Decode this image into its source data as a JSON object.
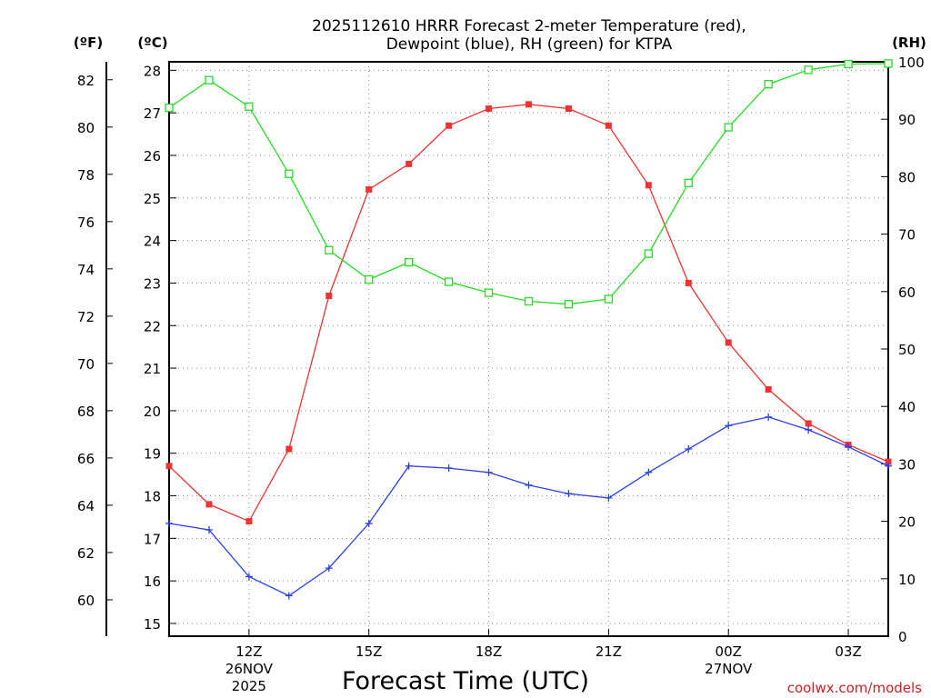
{
  "chart_data": {
    "type": "line",
    "title_line1": "2025112610 HRRR Forecast 2-meter Temperature (red),",
    "title_line2": "Dewpoint (blue), RH (green) for KTPA",
    "xlabel": "Forecast Time (UTC)",
    "credit": "coolwx.com/models",
    "unit_f": "(ºF)",
    "unit_c": "(ºC)",
    "unit_rh": "(RH)",
    "x_hours": [
      10,
      11,
      12,
      13,
      14,
      15,
      16,
      17,
      18,
      19,
      20,
      21,
      22,
      23,
      24,
      25,
      26,
      27,
      28
    ],
    "xlim": [
      10,
      28
    ],
    "ylim_c": [
      14.7,
      28.2
    ],
    "ylim_rh": [
      0,
      100
    ],
    "x_ticks": [
      {
        "hour": 12,
        "label": "12Z",
        "sub1": "26NOV",
        "sub2": "2025"
      },
      {
        "hour": 15,
        "label": "15Z",
        "sub1": "",
        "sub2": ""
      },
      {
        "hour": 18,
        "label": "18Z",
        "sub1": "",
        "sub2": ""
      },
      {
        "hour": 21,
        "label": "21Z",
        "sub1": "",
        "sub2": ""
      },
      {
        "hour": 24,
        "label": "00Z",
        "sub1": "27NOV",
        "sub2": ""
      },
      {
        "hour": 27,
        "label": "03Z",
        "sub1": "",
        "sub2": ""
      }
    ],
    "y_ticks_c": [
      15,
      16,
      17,
      18,
      19,
      20,
      21,
      22,
      23,
      24,
      25,
      26,
      27,
      28
    ],
    "y_ticks_f": [
      60,
      62,
      64,
      66,
      68,
      70,
      72,
      74,
      76,
      78,
      80,
      82
    ],
    "y_ticks_rh": [
      0,
      10,
      20,
      30,
      40,
      50,
      60,
      70,
      80,
      90,
      100
    ],
    "series": [
      {
        "name": "2-meter Temperature",
        "color": "#ee3333",
        "axis": "c",
        "marker": "filled-square",
        "values": [
          18.7,
          17.8,
          17.4,
          19.1,
          22.7,
          25.2,
          25.8,
          26.7,
          27.1,
          27.2,
          27.1,
          26.7,
          25.3,
          23.0,
          21.6,
          20.5,
          19.7,
          19.2,
          18.8
        ]
      },
      {
        "name": "Dewpoint",
        "color": "#2a3ff0",
        "axis": "c",
        "marker": "plus",
        "values": [
          17.35,
          17.2,
          16.1,
          15.65,
          16.3,
          17.35,
          18.7,
          18.65,
          18.55,
          18.25,
          18.05,
          17.95,
          18.55,
          19.1,
          19.65,
          19.85,
          19.55,
          19.15,
          18.7
        ]
      },
      {
        "name": "RH",
        "color": "#22dd22",
        "axis": "rh",
        "marker": "open-square",
        "values": [
          92,
          96.8,
          92.2,
          80.5,
          67.2,
          62.1,
          65.1,
          61.7,
          59.8,
          58.3,
          57.8,
          58.7,
          66.6,
          78.9,
          88.6,
          96.1,
          98.6,
          99.6,
          99.7
        ]
      }
    ]
  }
}
